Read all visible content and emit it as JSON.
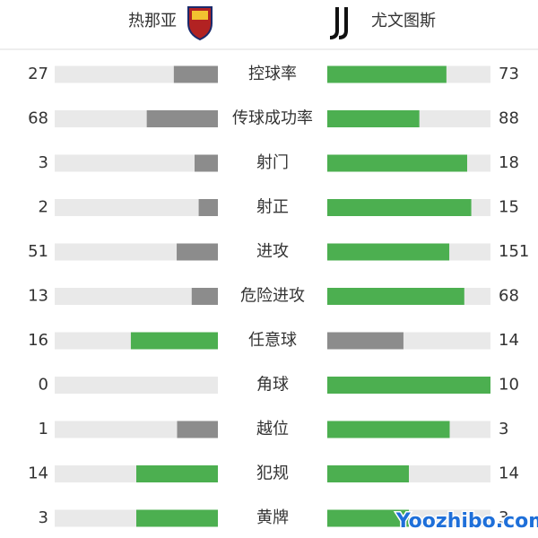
{
  "chart_data": {
    "type": "comparison-bar",
    "categories": [
      "控球率",
      "传球成功率",
      "射门",
      "射正",
      "进攻",
      "危险进攻",
      "任意球",
      "角球",
      "越位",
      "犯规",
      "黄牌"
    ],
    "series": [
      {
        "name": "热那亚",
        "values": [
          27,
          68,
          3,
          2,
          51,
          13,
          16,
          0,
          1,
          14,
          3
        ]
      },
      {
        "name": "尤文图斯",
        "values": [
          73,
          88,
          18,
          15,
          151,
          68,
          14,
          10,
          3,
          14,
          3
        ]
      }
    ],
    "colors": {
      "higher": "#4caf50",
      "lower": "#8c8c8c",
      "track": "#e9e9e9"
    },
    "watermark": "Yoozhibo.com"
  }
}
